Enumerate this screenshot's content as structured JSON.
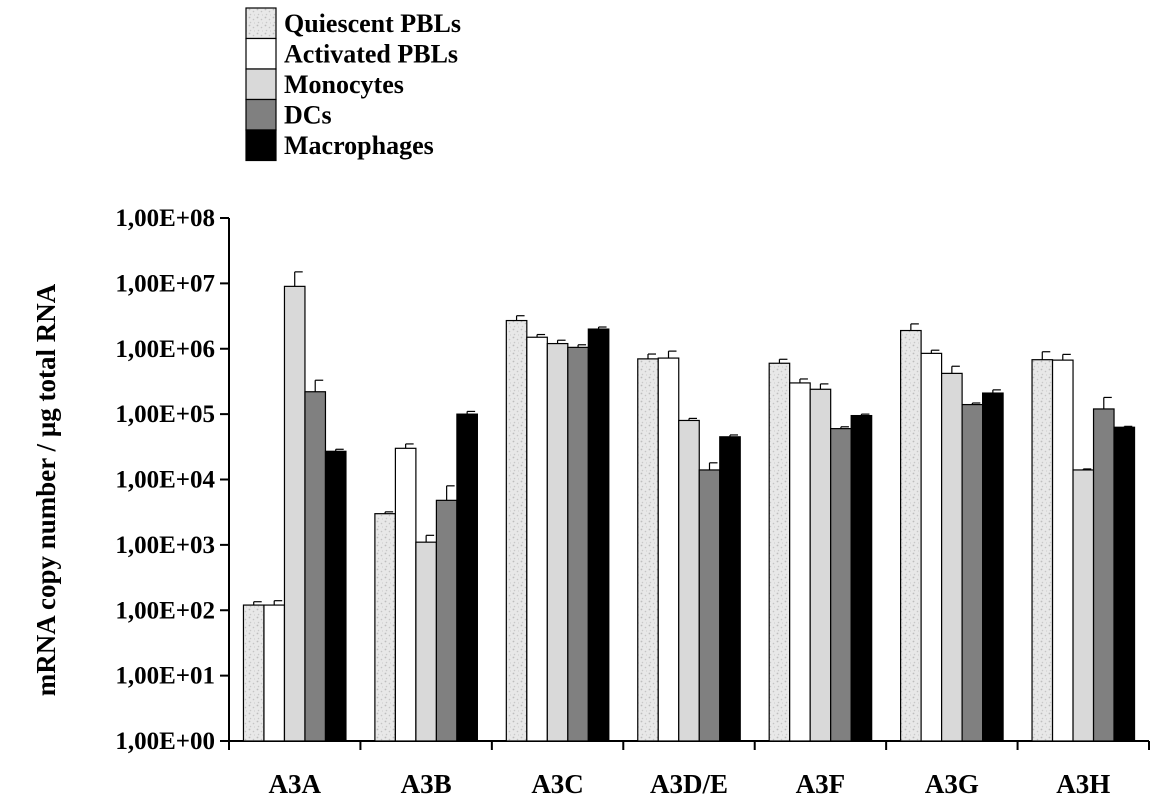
{
  "chart_data": {
    "type": "bar",
    "title": "",
    "xlabel": "",
    "ylabel": "mRNA copy number / µg total RNA",
    "yscale": "log",
    "ylim": [
      1,
      100000000
    ],
    "yticks": [
      1,
      10,
      100,
      1000,
      10000,
      100000,
      1000000,
      10000000,
      100000000
    ],
    "ytick_labels": [
      "1,00E+00",
      "1,00E+01",
      "1,00E+02",
      "1,00E+03",
      "1,00E+04",
      "1,00E+05",
      "1,00E+06",
      "1,00E+07",
      "1,00E+08"
    ],
    "categories": [
      "A3A",
      "A3B",
      "A3C",
      "A3D/E",
      "A3F",
      "A3G",
      "A3H"
    ],
    "legend_position": "top-left",
    "grid": false,
    "series": [
      {
        "name": "Quiescent PBLs",
        "color": "#e6e6e6",
        "pattern": "speckled",
        "values": [
          120,
          3000,
          2700000,
          700000,
          600000,
          1900000,
          680000
        ],
        "errors": [
          135,
          3200,
          3200000,
          830000,
          690000,
          2400000,
          900000
        ]
      },
      {
        "name": "Activated PBLs",
        "color": "#ffffff",
        "values": [
          120,
          30000,
          1500000,
          720000,
          300000,
          850000,
          670000
        ],
        "errors": [
          140,
          35000,
          1650000,
          920000,
          345000,
          950000,
          820000
        ]
      },
      {
        "name": "Monocytes",
        "color": "#d9d9d9",
        "values": [
          9000000,
          1100,
          1200000,
          80000,
          240000,
          420000,
          14000
        ],
        "errors": [
          15000000,
          1400,
          1350000,
          86000,
          290000,
          540000,
          14500
        ]
      },
      {
        "name": "DCs",
        "color": "#808080",
        "values": [
          220000,
          4800,
          1050000,
          14000,
          60000,
          140000,
          120000
        ],
        "errors": [
          330000,
          8000,
          1150000,
          18000,
          64000,
          148000,
          180000
        ]
      },
      {
        "name": "Macrophages",
        "color": "#000000",
        "values": [
          27000,
          100000,
          2000000,
          45000,
          95000,
          210000,
          63000
        ],
        "errors": [
          29000,
          110000,
          2150000,
          48000,
          100000,
          235000,
          65000
        ]
      }
    ]
  }
}
